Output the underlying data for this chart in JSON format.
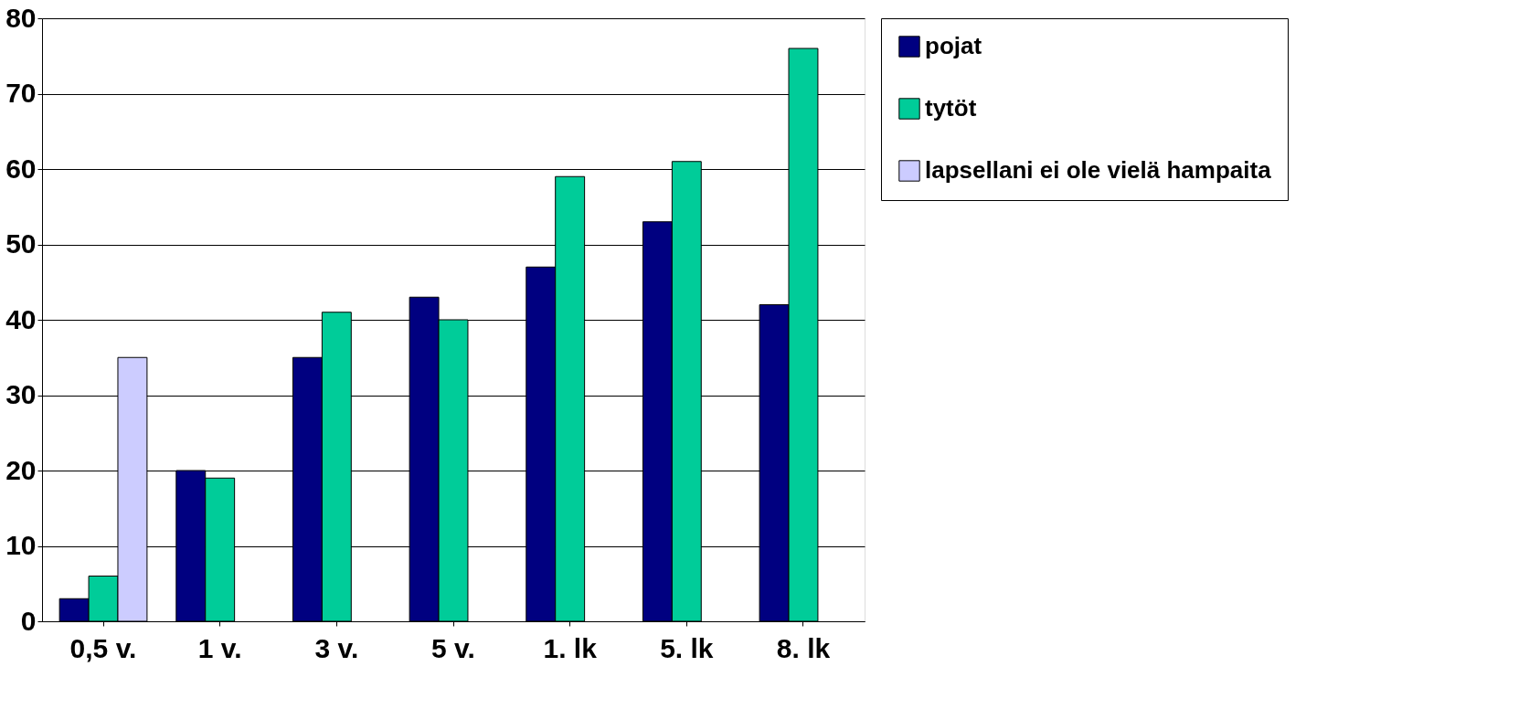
{
  "chart_data": {
    "type": "bar",
    "categories": [
      "0,5 v.",
      "1 v.",
      "3 v.",
      "5 v.",
      "1. lk",
      "5. lk",
      "8. lk"
    ],
    "series": [
      {
        "name": "pojat",
        "color": "#000080",
        "values": [
          3,
          20,
          35,
          43,
          47,
          53,
          42
        ]
      },
      {
        "name": "tytöt",
        "color": "#00cc99",
        "values": [
          6,
          19,
          41,
          40,
          59,
          61,
          76
        ]
      },
      {
        "name": "lapsellani ei ole vielä hampaita",
        "color": "#ccccff",
        "values": [
          35,
          null,
          null,
          null,
          null,
          null,
          null
        ]
      }
    ],
    "ylim": [
      0,
      80
    ],
    "yticks": [
      0,
      10,
      20,
      30,
      40,
      50,
      60,
      70,
      80
    ],
    "grid": "y",
    "legend": "right"
  }
}
